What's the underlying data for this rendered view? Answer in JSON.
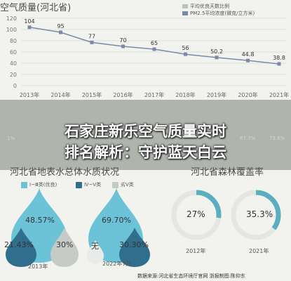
{
  "header": {
    "title": "空气质量(河北省)"
  },
  "legend": [
    {
      "label": "平均优良天数比例",
      "color": "#b9c4bd"
    },
    {
      "label": "PM2.5平均浓度(微克/立方米)",
      "color": "#7a8aa6"
    }
  ],
  "chart_data": {
    "type": "line",
    "categories": [
      "2013年",
      "2014年",
      "2015年",
      "2016年",
      "2017年",
      "2018年",
      "2019年",
      "2020年",
      "2021年"
    ],
    "series": [
      {
        "name": "PM2.5平均浓度(微克/立方米)",
        "values": [
          104,
          95,
          77,
          70,
          65,
          56,
          50.2,
          44.8,
          38.8
        ]
      }
    ],
    "y_ticks": [
      0,
      20,
      40,
      60,
      80,
      100,
      120
    ],
    "ylim": [
      0,
      120
    ],
    "grid": true,
    "line_color": "#7a8aa6"
  },
  "strip_values": [
    "1%",
    "67.7%",
    "73.8%"
  ],
  "headline": {
    "line1": "石家庄新乐空气质量实时",
    "line2": "排名解析：守护蓝天白云"
  },
  "water": {
    "title": "河北省地表水总体水质状况",
    "legend": [
      {
        "label": "Ⅰ~Ⅲ类(优良)",
        "color": "#6cc3d8"
      },
      {
        "label": "Ⅳ~Ⅴ类",
        "color": "#2f6e8c"
      },
      {
        "label": "劣Ⅴ类",
        "color": "#c7cbc7"
      }
    ],
    "drops": [
      {
        "year": "2013年",
        "good": "48.57%",
        "mid": "21.43%",
        "bad": "30%"
      },
      {
        "year": "2022年7月",
        "good": "69.70%",
        "mid": "30.30%",
        "bad": "无"
      }
    ]
  },
  "forest": {
    "title": "河北省森林覆盖率",
    "items": [
      {
        "year": "2012年",
        "value": "27%",
        "fraction": 0.27
      },
      {
        "year": "2021年",
        "value": "35.3%",
        "fraction": 0.353
      }
    ],
    "color": "#5aaec0"
  },
  "source": "数据来源:河北省生态环境厅官网  浙报制图:陈仰东"
}
